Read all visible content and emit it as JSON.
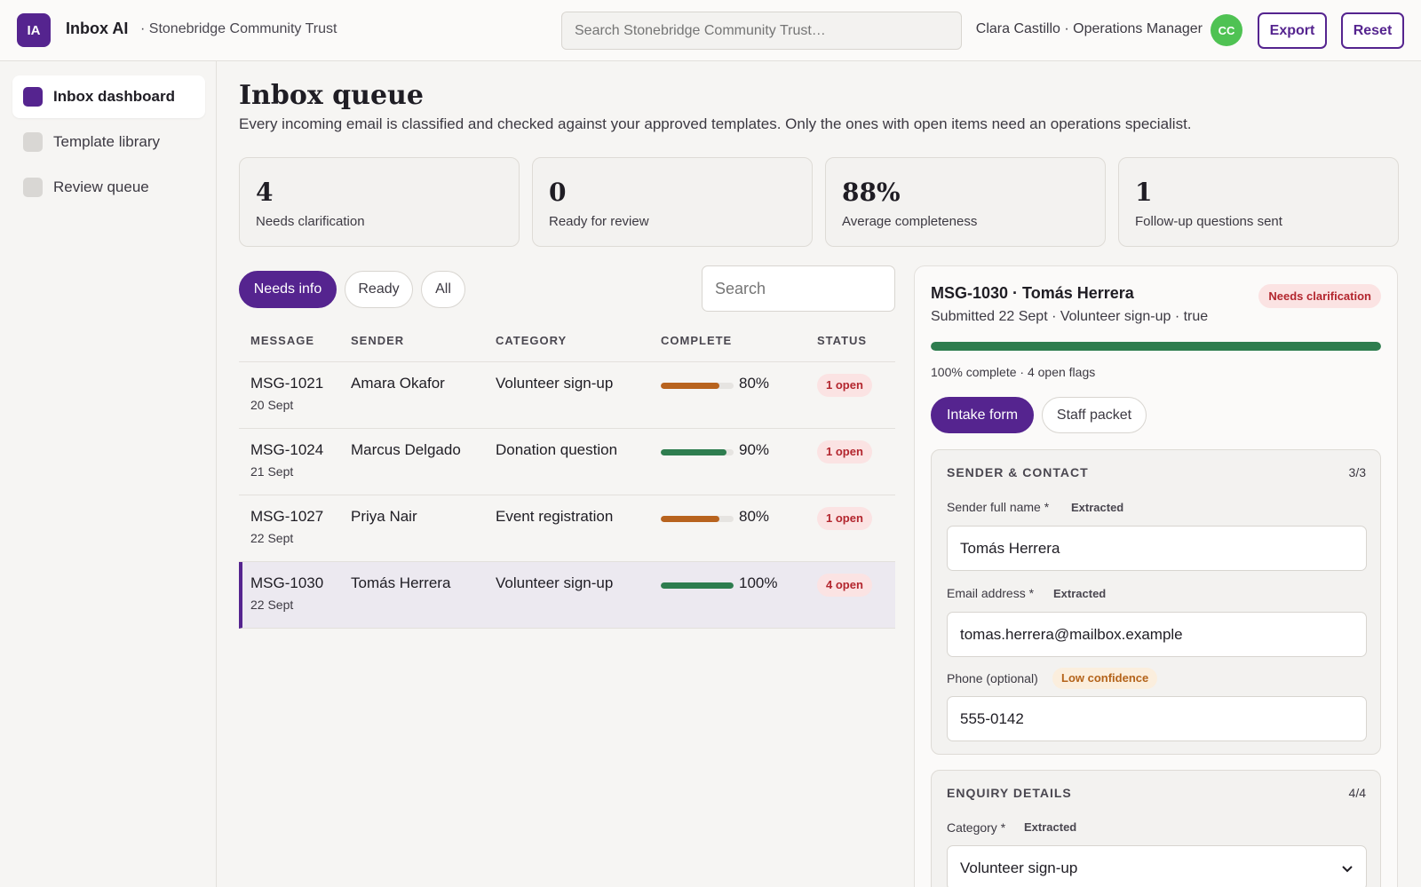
{
  "app": {
    "logo": "IA",
    "name": "Inbox AI",
    "org": "· Stonebridge Community Trust"
  },
  "header": {
    "search_placeholder": "Search Stonebridge Community Trust…",
    "user": "Clara Castillo · Operations Manager",
    "avatar": "CC",
    "export_label": "Export",
    "reset_label": "Reset"
  },
  "sidebar": {
    "items": [
      {
        "label": "Inbox dashboard",
        "active": true
      },
      {
        "label": "Template library",
        "active": false
      },
      {
        "label": "Review queue",
        "active": false
      }
    ]
  },
  "main": {
    "title": "Inbox queue",
    "subtitle": "Every incoming email is classified and checked against your approved templates. Only the ones with open items need an operations specialist."
  },
  "stats": [
    {
      "value": "4",
      "label": "Needs clarification"
    },
    {
      "value": "0",
      "label": "Ready for review"
    },
    {
      "value": "88%",
      "label": "Average completeness"
    },
    {
      "value": "1",
      "label": "Follow-up questions sent"
    }
  ],
  "filters": {
    "needs_info": "Needs info",
    "ready": "Ready",
    "all": "All",
    "search_placeholder": "Search"
  },
  "table": {
    "columns": [
      "MESSAGE",
      "SENDER",
      "CATEGORY",
      "COMPLETE",
      "STATUS"
    ],
    "rows": [
      {
        "id": "MSG-1021",
        "date": "20 Sept",
        "sender": "Amara Okafor",
        "category": "Volunteer sign-up",
        "complete": 80,
        "complete_label": "80%",
        "status": "1 open",
        "bar_color": "#b8631e"
      },
      {
        "id": "MSG-1024",
        "date": "21 Sept",
        "sender": "Marcus Delgado",
        "category": "Donation question",
        "complete": 90,
        "complete_label": "90%",
        "status": "1 open",
        "bar_color": "#2e7d4f"
      },
      {
        "id": "MSG-1027",
        "date": "22 Sept",
        "sender": "Priya Nair",
        "category": "Event registration",
        "complete": 80,
        "complete_label": "80%",
        "status": "1 open",
        "bar_color": "#b8631e"
      },
      {
        "id": "MSG-1030",
        "date": "22 Sept",
        "sender": "Tomás Herrera",
        "category": "Volunteer sign-up",
        "complete": 100,
        "complete_label": "100%",
        "status": "4 open",
        "bar_color": "#2e7d4f",
        "selected": true
      }
    ]
  },
  "detail": {
    "title": "MSG-1030 · Tomás Herrera",
    "badge": "Needs clarification",
    "subtitle": "Submitted 22 Sept · Volunteer sign-up · true",
    "progress": 100,
    "meta": "100% complete · 4 open flags",
    "tabs": [
      "Intake form",
      "Staff packet"
    ],
    "sections": [
      {
        "title": "SENDER & CONTACT",
        "count": "3/3",
        "fields": [
          {
            "label": "Sender full name *",
            "tag": "Extracted",
            "value": "Tomás Herrera"
          },
          {
            "label": "Email address *",
            "tag": "Extracted",
            "value": "tomas.herrera@mailbox.example"
          },
          {
            "label": "Phone (optional)",
            "tag": "Low confidence",
            "value": "555-0142"
          }
        ]
      },
      {
        "title": "ENQUIRY DETAILS",
        "count": "4/4",
        "fields": [
          {
            "label": "Category *",
            "tag": "Extracted",
            "value": "Volunteer sign-up"
          }
        ]
      }
    ]
  },
  "colors": {
    "accent": "#55248f",
    "green": "#2e7d4f",
    "amber": "#b8631e",
    "danger": "#b3262e"
  }
}
